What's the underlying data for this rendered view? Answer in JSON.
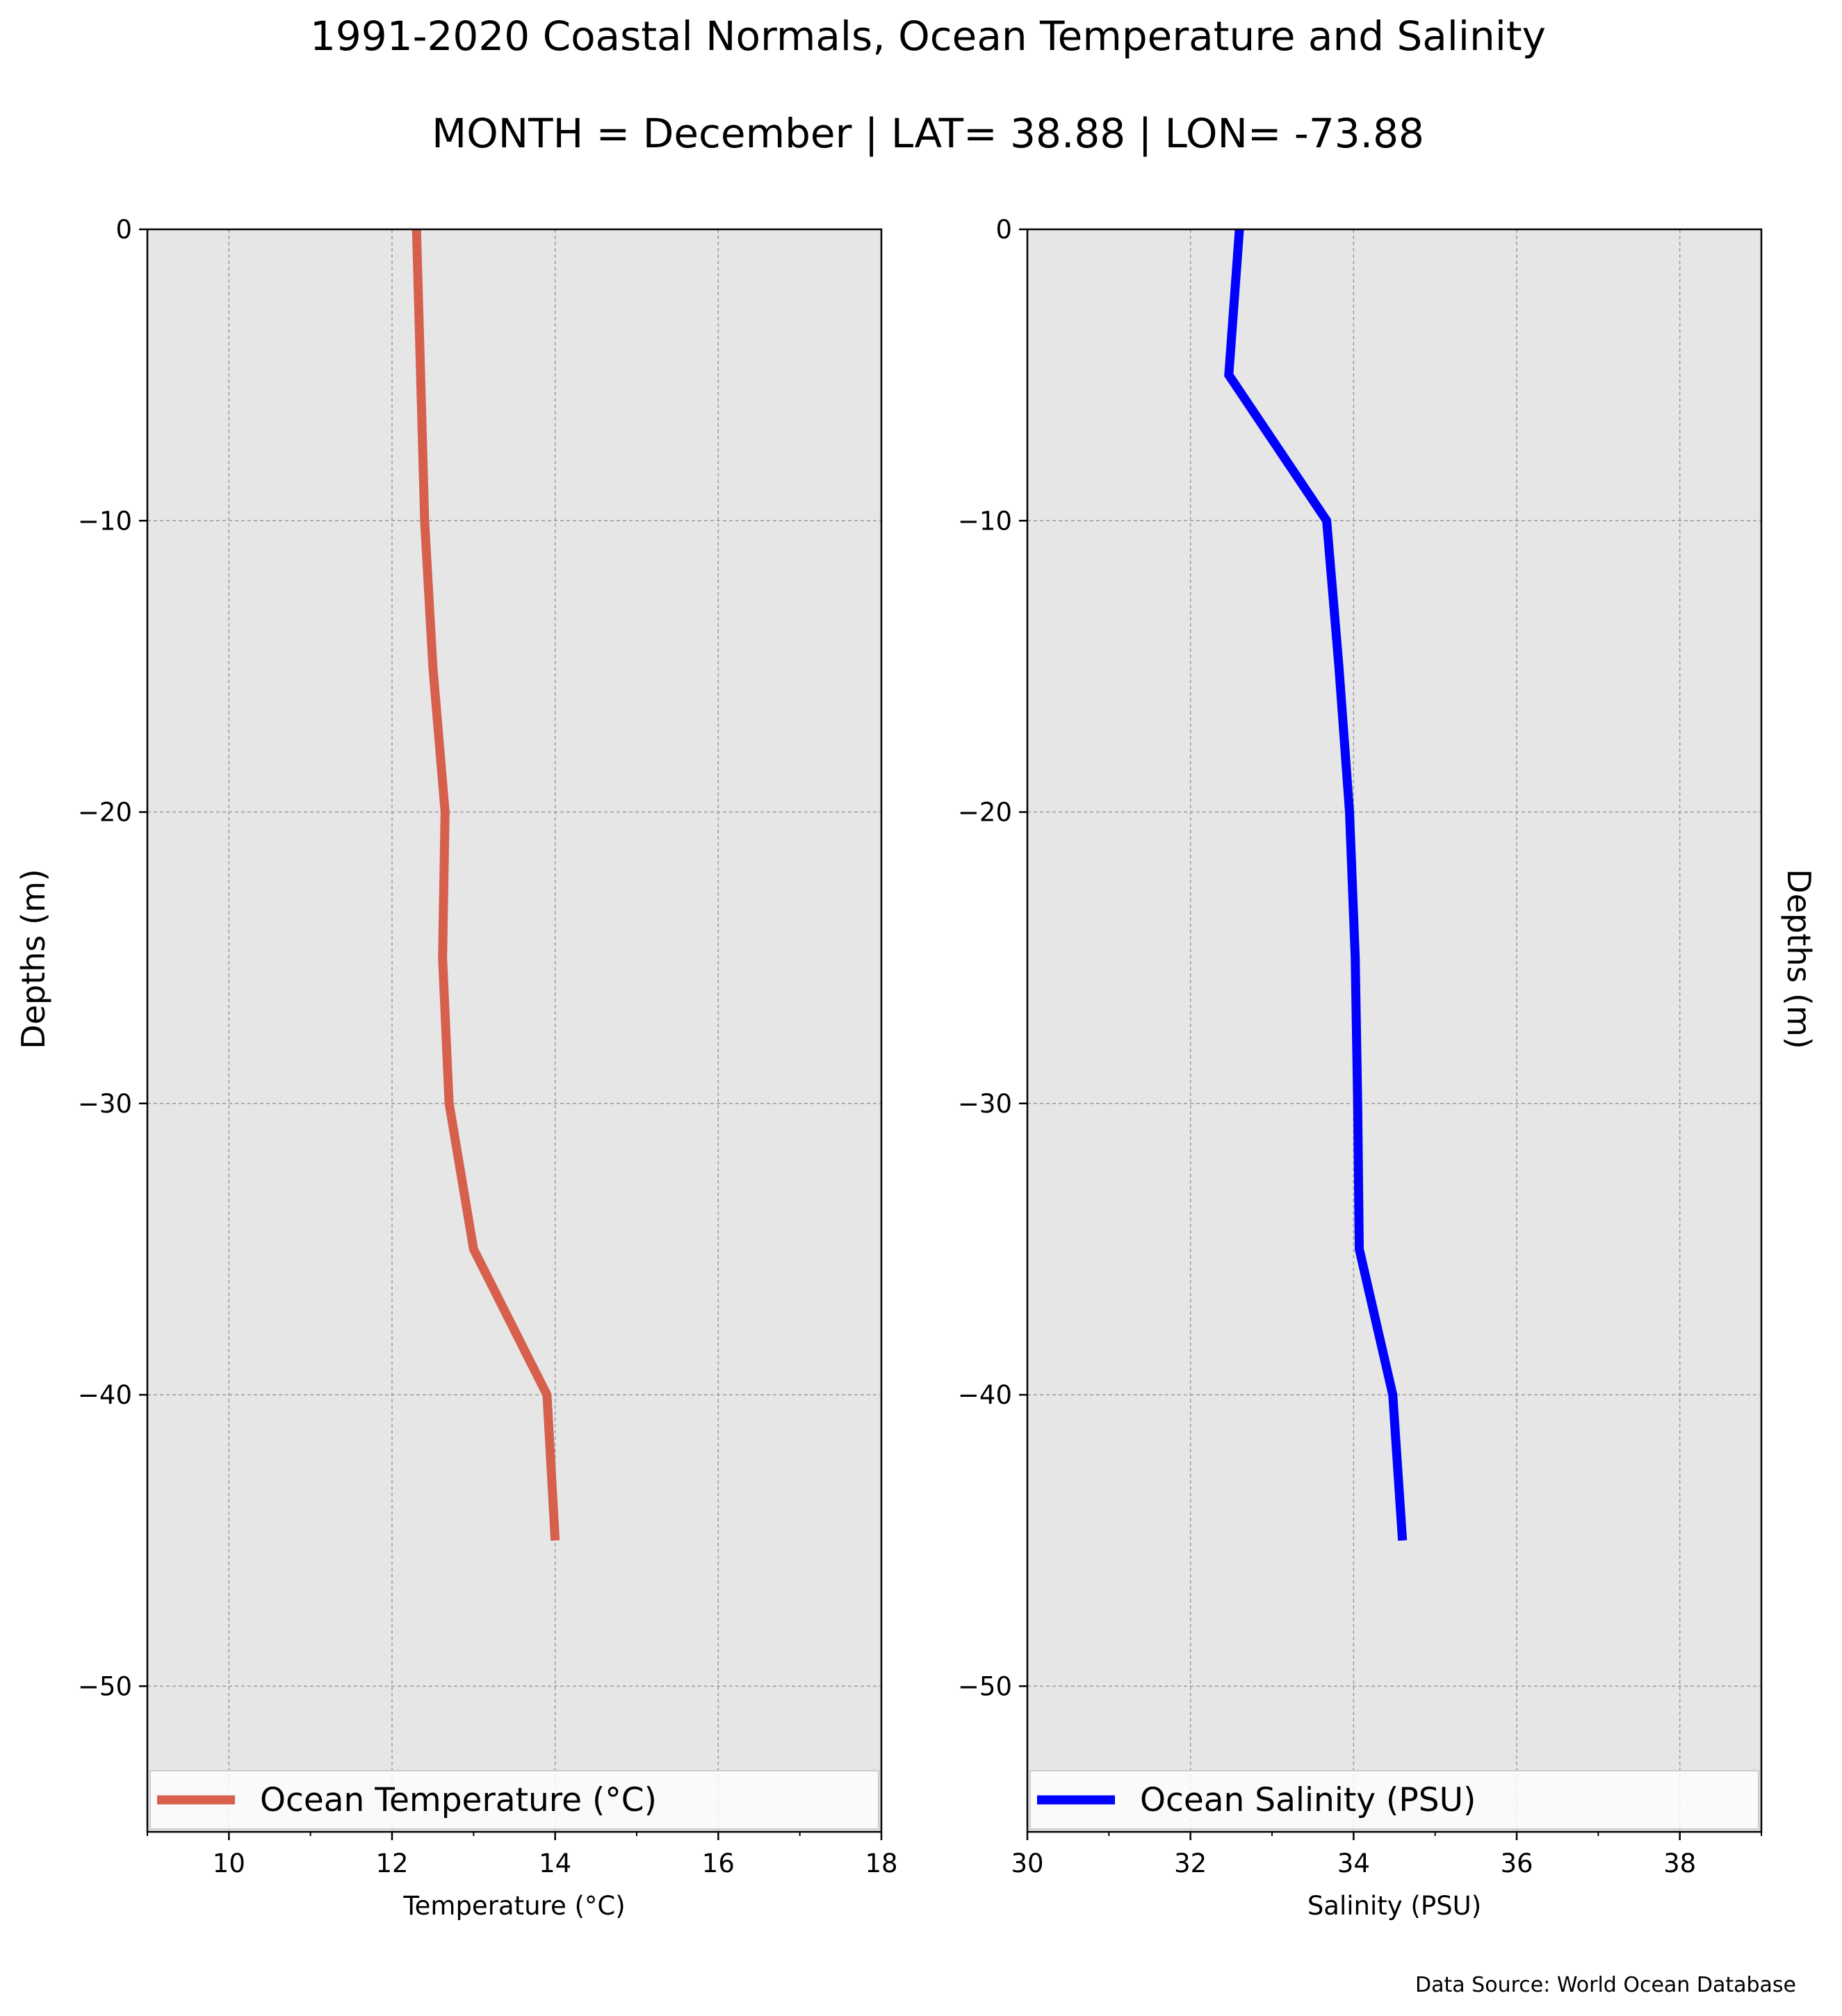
{
  "header": {
    "title": "1991-2020 Coastal Normals, Ocean Temperature and Salinity",
    "subtitle": "MONTH = December | LAT= 38.88 | LON= -73.88"
  },
  "footer": {
    "source": "Data Source: World Ocean Database"
  },
  "colors": {
    "plot_bg": "#e6e6e6",
    "temperature": "#d6604d",
    "salinity": "#0000ff",
    "grid": "#9a9a9a"
  },
  "chart_data": [
    {
      "type": "line",
      "xlabel": "Temperature ($^\\circ$C)",
      "xlabel_display": "Temperature (°C)",
      "ylabel": "Depths (m)",
      "xlim": [
        9,
        18
      ],
      "ylim": [
        -55,
        0
      ],
      "xticks": [
        10,
        12,
        14,
        16,
        18
      ],
      "xtick_labels": [
        "10",
        "12",
        "14",
        "16",
        "18"
      ],
      "yticks": [
        0,
        -10,
        -20,
        -30,
        -40,
        -50
      ],
      "ytick_labels": [
        "0",
        "−10",
        "−20",
        "−30",
        "−40",
        "−50"
      ],
      "grid": true,
      "legend_placement": "lower center",
      "series": [
        {
          "name": "Ocean Temperature ($^\\circ$C)",
          "name_display": "Ocean Temperature (°C)",
          "color": "#d6604d",
          "x": [
            12.3,
            12.35,
            12.4,
            12.5,
            12.65,
            12.62,
            12.7,
            13.0,
            13.9,
            14.0
          ],
          "y": [
            0,
            -5,
            -10,
            -15,
            -20,
            -25,
            -30,
            -35,
            -40,
            -45
          ]
        }
      ]
    },
    {
      "type": "line",
      "xlabel": "Salinity (PSU)",
      "ylabel": "Depths (m)",
      "xlim": [
        30,
        39
      ],
      "ylim": [
        -55,
        0
      ],
      "xticks": [
        30,
        32,
        34,
        36,
        38
      ],
      "xtick_labels": [
        "30",
        "32",
        "34",
        "36",
        "38"
      ],
      "yticks": [
        0,
        -10,
        -20,
        -30,
        -40,
        -50
      ],
      "ytick_labels": [
        "0",
        "−10",
        "−20",
        "−30",
        "−40",
        "−50"
      ],
      "grid": true,
      "legend_placement": "lower center",
      "series": [
        {
          "name": "Ocean Salinity (PSU)",
          "color": "#0000ff",
          "x": [
            32.6,
            32.47,
            33.67,
            33.82,
            33.95,
            34.02,
            34.05,
            34.07,
            34.48,
            34.6
          ],
          "y": [
            0,
            -5,
            -10,
            -15,
            -20,
            -25,
            -30,
            -35,
            -40,
            -45
          ]
        }
      ]
    }
  ]
}
